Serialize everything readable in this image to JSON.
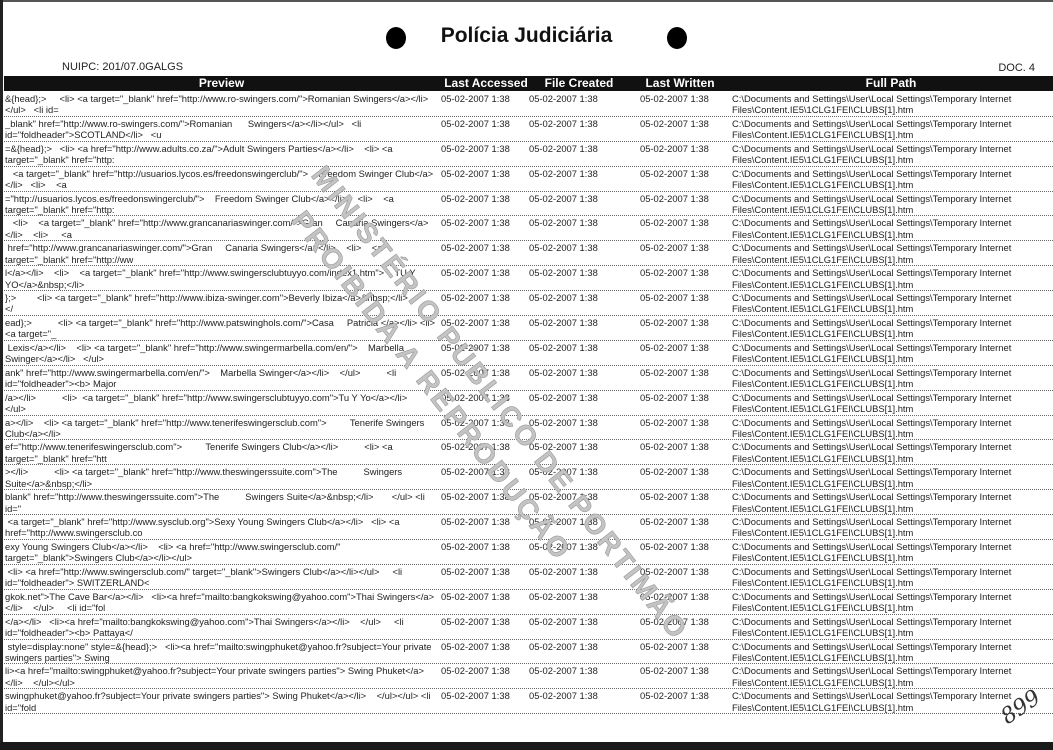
{
  "header": {
    "title": "Polícia Judiciária",
    "nuipc": "NUIPC: 201/07.0GALGS",
    "doc": "DOC. 4"
  },
  "columns": [
    "Preview",
    "Last Accessed",
    "File Created",
    "Last Written",
    "Full Path"
  ],
  "path": "C:\\Documents and Settings\\User\\Local Settings\\Temporary Internet Files\\Content.IE5\\1CLG1FEI\\CLUBS[1].htm",
  "date": "05-02-2007 1:38",
  "rows": [
    "&{head};>     <li> <a target=\"_blank\" href=\"http://www.ro-swingers.com/\">Romanian Swingers</a></li></ul>   <li id=",
    "_blank\" href=\"http://www.ro-swingers.com/\">Romanian      Swingers</a></li></ul>   <li id=\"foldheader\">SCOTLAND</li>   <u",
    "=&{head};>   <li> <a href=\"http://www.adults.co.za/\">Adult Swingers Parties</a></li>    <li> <a target=\"_blank\" href=\"http:",
    "   <a target=\"_blank\" href=\"http://usuarios.lycos.es/freedonswingerclub/\">    Freedom Swinger Club</a></li>   <li>    <a",
    "=\"http://usuarios.lycos.es/freedonswingerclub/\">    Freedom Swinger Club</a></li>    <li>    <a target=\"_blank\" href=\"http:",
    "   <li>    <a target=\"_blank\" href=\"http://www.grancanariaswinger.com/\">Gran     Canaria Swingers</a></li>    <li>     <a",
    " href=\"http://www.grancanariaswinger.com/\">Gran     Canaria Swingers</a></li>    <li>    <a target=\"_blank\" href=\"http://ww",
    "l</a></li>    <li>    <a target=\"_blank\" href=\"http://www.swingersclubtuyyo.com/index1.htm\">    TU Y YO</a>&nbsp;</li>",
    "};>        <li> <a target=\"_blank\" href=\"http://www.ibiza-swinger.com\">Beverly Ibiza</a>&nbsp;</li>          </",
    "ead};>          <li> <a target=\"_blank\" href=\"http://www.patswinghols.com/\">Casa     Patricia </a></li> <li> <a target=\"_",
    " Lexis</a></li>    <li> <a target=\"_blank\" href=\"http://www.swingermarbella.com/en/\">    Marbella Swinger</a></li>   </ul>",
    "ank\" href=\"http://www.swingermarbella.com/en/\">    Marbella Swinger</a></li>    </ul>          <li id=\"foldheader\"><b> Major",
    "/a></li>          <li>  <a target=\"_blank\" href=\"http://www.swingersclubtuyyo.com\">Tu Y Yo</a></li>      </ul>",
    "a></li>    <li> <a target=\"_blank\" href=\"http://www.tenerifeswingersclub.com\">         Tenerife Swingers Club</a></li>",
    "ef=\"http://www.tenerifeswingersclub.com\">         Tenerife Swingers Club</a></li>          <li> <a target=\"_blank\" href=\"htt",
    "></li>          <li> <a target=\"_blank\" href=\"http://www.theswingerssuite.com\">The          Swingers Suite</a>&nbsp;</li>",
    "blank\" href=\"http://www.theswingerssuite.com\">The          Swingers Suite</a>&nbsp;</li>       </ul> <li id=\"",
    " <a target=\"_blank\" href=\"http://www.sysclub.org\">Sexy Young Swingers Club</a></li>   <li> <a href=\"http://www.swingersclub.co",
    "exy Young Swingers Club</a></li>    <li> <a href=\"http://www.swingersclub.com/\" target=\"_blank\">Swingers Club</a></li></ul>",
    " <li> <a href=\"http://www.swingersclub.com/\" target=\"_blank\">Swingers Club</a></li></ul>     <li id=\"foldheader\"> SWITZERLAND<",
    "gkok.net\">The Cave Bar</a></li>   <li><a href=\"mailto:bangkokswing@yahoo.com\">Thai Swingers</a></li>    </ul>     <li id=\"fol",
    "</a></li>   <li><a href=\"mailto:bangkokswing@yahoo.com\">Thai Swingers</a></li>    </ul>     <li id=\"foldheader\"><b> Pattaya</",
    " style=display:none\" style=&{head};>   <li><a href=\"mailto:swingphuket@yahoo.fr?subject=Your private swingers parties\"> Swing",
    "li><a href=\"mailto:swingphuket@yahoo.fr?subject=Your private swingers parties\"> Swing Phuket</a></li>    </ul></ul>",
    "swingphuket@yahoo.fr?subject=Your private swingers parties\"> Swing Phuket</a></li>    </ul></ul> <li id=\"fold"
  ],
  "watermark": {
    "line1": "MINISTÉRIO PÚBLICO DE PORTIMÃO",
    "line2": "PROIBIDA A REPRODUÇÃO"
  },
  "handwritten_page_number": "899"
}
